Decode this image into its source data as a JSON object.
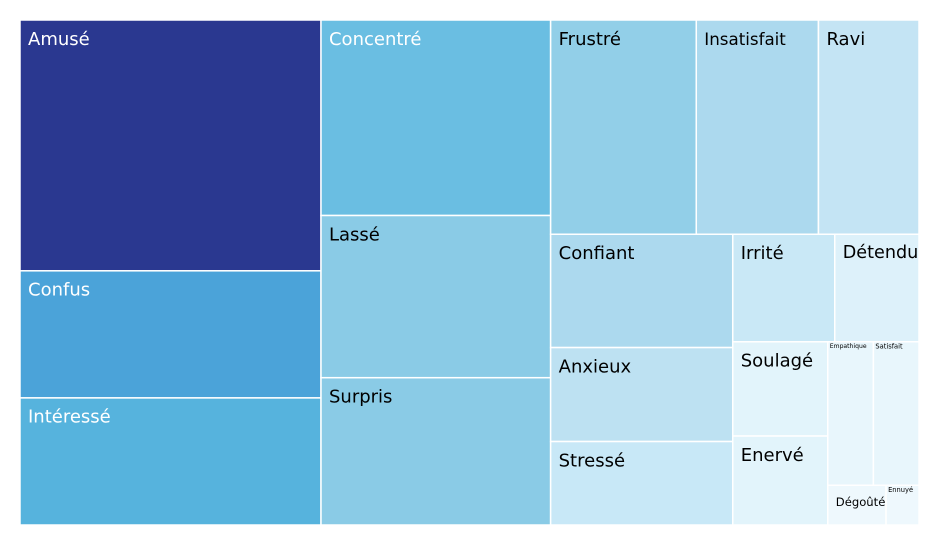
{
  "chart_data": {
    "type": "treemap",
    "categories": [
      "Amusé",
      "Confus",
      "Intéressé",
      "Concentré",
      "Lassé",
      "Surpris",
      "Frustré",
      "Insatisfait",
      "Ravi",
      "Confiant",
      "Anxieux",
      "Stressé",
      "Irrité",
      "Détendu",
      "Soulagé",
      "Enervé",
      "Empathique",
      "Satisfait",
      "Dégoûté",
      "Ennuyé"
    ],
    "values": [
      75,
      38,
      38,
      44.6,
      37,
      33.6,
      31,
      26,
      21.4,
      20.5,
      17,
      15.1,
      10.9,
      9,
      8.9,
      8.4,
      6.5,
      6.5,
      2.3,
      1.3
    ],
    "colors": [
      "#2a3890",
      "#4ba3d9",
      "#56b3dd",
      "#6abee2",
      "#8acbe6",
      "#8acbe6",
      "#92cfe8",
      "#acd9ee",
      "#c4e4f4",
      "#acd9ee",
      "#bde1f2",
      "#c8e8f7",
      "#c9e8f6",
      "#ddf1fa",
      "#e2f4fb",
      "#e2f4fb",
      "#e8f6fc",
      "#e8f6fc",
      "#eef8fd",
      "#eef8fd"
    ]
  }
}
